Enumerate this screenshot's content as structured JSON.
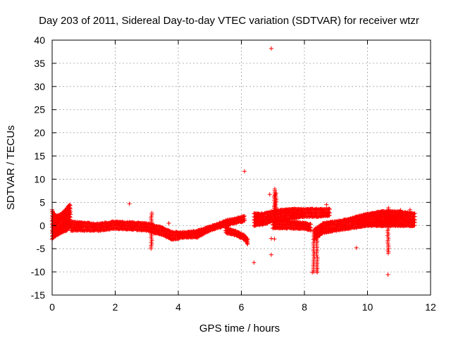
{
  "chart_data": {
    "type": "scatter",
    "title": "Day 203 of 2011, Sidereal Day-to-day VTEC variation (SDTVAR) for receiver wtzr",
    "xlabel": "GPS time / hours",
    "ylabel": "SDTVAR / TECUs",
    "xlim": [
      0,
      12
    ],
    "ylim": [
      -15,
      40
    ],
    "x_ticks": [
      "0",
      "2",
      "4",
      "6",
      "8",
      "10",
      "12"
    ],
    "y_ticks": [
      "-15",
      "-10",
      "-5",
      "0",
      "5",
      "10",
      "15",
      "20",
      "25",
      "30",
      "35",
      "40"
    ],
    "grid": true,
    "marker": "+",
    "series": [
      {
        "name": "SDTVAR",
        "color": "#ff0000",
        "band_segments": [
          {
            "x": [
              0.0,
              0.05,
              0.15,
              0.3,
              0.45,
              0.55,
              0.6
            ],
            "lo": [
              -3.0,
              -2.5,
              -2.0,
              -1.5,
              -1.0,
              -0.5,
              0.0
            ],
            "hi": [
              3.5,
              2.5,
              2.0,
              2.5,
              3.5,
              4.5,
              4.0
            ]
          },
          {
            "x": [
              0.6,
              1.0,
              1.5,
              2.0,
              2.5,
              3.0,
              3.2
            ],
            "lo": [
              -1.0,
              -1.0,
              -1.0,
              -0.6,
              -0.8,
              -1.0,
              -1.3
            ],
            "hi": [
              0.8,
              0.5,
              0.3,
              0.8,
              0.6,
              0.4,
              0.2
            ]
          },
          {
            "x": [
              3.2,
              3.5,
              3.8,
              4.2,
              4.6,
              5.0,
              5.5,
              5.9,
              6.1
            ],
            "lo": [
              -1.5,
              -2.0,
              -3.0,
              -2.5,
              -2.5,
              -1.0,
              0.0,
              0.8,
              1.0
            ],
            "hi": [
              0.0,
              -0.5,
              -1.5,
              -1.5,
              -1.2,
              -0.3,
              1.0,
              1.6,
              2.0
            ]
          },
          {
            "x": [
              5.5,
              5.8,
              6.1,
              6.2
            ],
            "lo": [
              -1.5,
              -2.0,
              -3.0,
              -4.0
            ],
            "hi": [
              -0.5,
              -1.2,
              -2.2,
              -3.0
            ]
          },
          {
            "x": [
              6.4,
              6.7,
              7.0,
              7.5,
              8.0,
              8.5,
              8.8
            ],
            "lo": [
              0.0,
              0.3,
              1.0,
              1.5,
              2.0,
              2.0,
              2.2
            ],
            "hi": [
              2.5,
              2.5,
              3.0,
              3.5,
              3.5,
              3.5,
              3.5
            ]
          },
          {
            "x": [
              7.0,
              7.5,
              8.0,
              8.2
            ],
            "lo": [
              -0.5,
              -0.5,
              -0.7,
              -1.0
            ],
            "hi": [
              1.0,
              0.8,
              0.5,
              0.2
            ]
          },
          {
            "x": [
              8.3,
              8.6,
              9.0,
              9.5,
              10.0,
              10.5,
              11.0,
              11.5
            ],
            "lo": [
              -3.0,
              -1.5,
              -1.0,
              -0.5,
              0.0,
              0.0,
              0.0,
              0.0
            ],
            "hi": [
              -1.0,
              0.5,
              0.8,
              1.5,
              2.5,
              3.0,
              3.0,
              2.5
            ]
          }
        ],
        "spikes": [
          {
            "x": 3.15,
            "y_min": -5.0,
            "y_max": 2.8
          },
          {
            "x": 7.05,
            "y_min": -0.5,
            "y_max": 8.0
          },
          {
            "x": 7.1,
            "y_min": 0.0,
            "y_max": 7.0
          },
          {
            "x": 8.3,
            "y_min": -10.0,
            "y_max": -1.0
          },
          {
            "x": 8.4,
            "y_min": -10.0,
            "y_max": -2.0
          },
          {
            "x": 10.65,
            "y_min": -6.0,
            "y_max": 4.0
          }
        ],
        "outliers": [
          {
            "x": 6.95,
            "y": 38.2
          },
          {
            "x": 6.1,
            "y": 11.7
          },
          {
            "x": 2.45,
            "y": 4.7
          },
          {
            "x": 6.4,
            "y": -8.0
          },
          {
            "x": 6.95,
            "y": -6.3
          },
          {
            "x": 6.9,
            "y": 6.7
          },
          {
            "x": 8.25,
            "y": -10.1
          },
          {
            "x": 8.4,
            "y": -10.1
          },
          {
            "x": 9.65,
            "y": -4.8
          },
          {
            "x": 10.65,
            "y": -10.6
          },
          {
            "x": 8.7,
            "y": 4.5
          },
          {
            "x": 3.7,
            "y": 0.5
          },
          {
            "x": 11.35,
            "y": 3.4
          },
          {
            "x": 11.05,
            "y": 3.3
          },
          {
            "x": 6.95,
            "y": -2.8
          },
          {
            "x": 7.05,
            "y": -2.9
          }
        ]
      }
    ]
  }
}
